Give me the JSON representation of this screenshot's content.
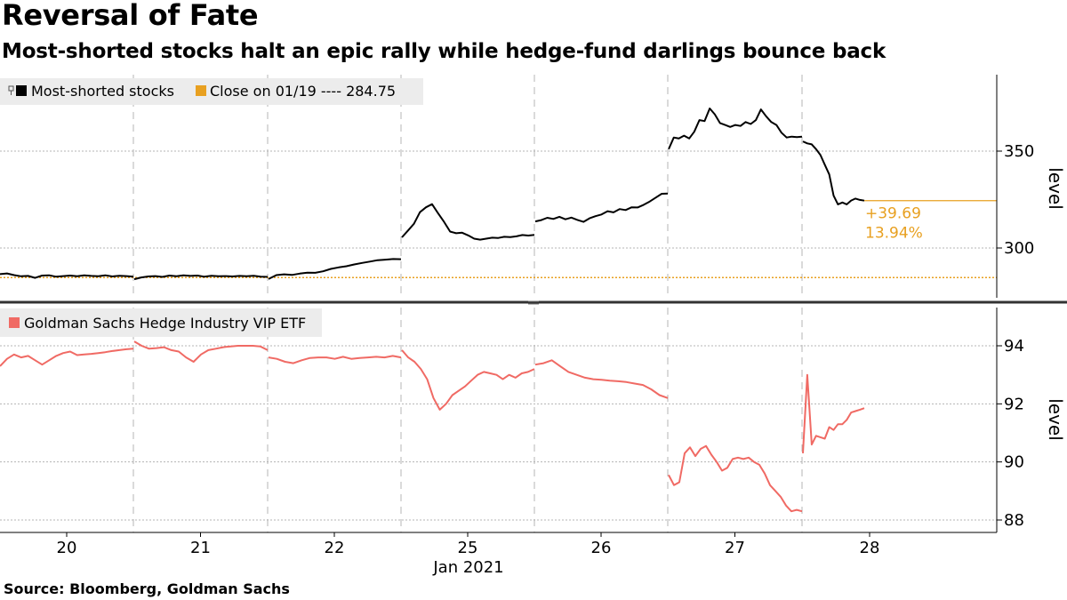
{
  "title": "Reversal of Fate",
  "subtitle": "Most-shorted stocks halt an epic rally while hedge-fund darlings bounce back",
  "source": "Source: Bloomberg, Goldman Sachs",
  "colors": {
    "black_series": "#000000",
    "reference": "#e8a020",
    "etf_series": "#f06a64",
    "legend_bg": "#ececec",
    "grid": "#b4b4b4",
    "separator": "#333333"
  },
  "chart_data": [
    {
      "type": "line",
      "ylabel": "level",
      "y_ticks": [
        300,
        350
      ],
      "ylim": [
        279,
        391
      ],
      "legend": {
        "placement": "top-left",
        "entries": [
          {
            "label": "Most-shorted stocks"
          },
          {
            "label": "Close on 01/19 ---- 284.75"
          }
        ]
      },
      "reference_line": {
        "label": "Close on 01/19",
        "value": 284.75
      },
      "annotation": {
        "change": "+39.69",
        "percent": "13.94%"
      },
      "last_value": 324.44,
      "series": [
        {
          "name": "Most-shorted stocks",
          "sessions": [
            {
              "day": "20",
              "values": [
                286.5,
                286.9,
                286.0,
                285.4,
                285.6,
                284.6,
                285.8,
                285.9,
                285.2,
                285.5,
                285.8,
                285.4,
                285.9,
                285.6,
                285.4,
                285.9,
                285.3,
                285.7,
                285.5,
                285.2
              ]
            },
            {
              "day": "21",
              "values": [
                283.9,
                284.8,
                285.3,
                285.5,
                285.1,
                285.8,
                285.4,
                285.9,
                285.6,
                285.8,
                285.2,
                285.7,
                285.4,
                285.5,
                285.3,
                285.6,
                285.4,
                285.7,
                285.2,
                285.1
              ]
            },
            {
              "day": "22",
              "values": [
                284.0,
                286.0,
                286.4,
                286.1,
                286.8,
                287.3,
                287.2,
                288.0,
                289.2,
                290.0,
                290.6,
                291.5,
                292.3,
                293.0,
                293.7,
                294.0,
                294.3,
                294.2
              ]
            },
            {
              "day": "25",
              "values": [
                305.5,
                309.0,
                312.5,
                318.5,
                321.0,
                322.6,
                318.0,
                313.5,
                308.5,
                307.6,
                307.9,
                306.5,
                304.8,
                304.3,
                304.8,
                305.3,
                305.2,
                305.8,
                305.6,
                306.0,
                306.7,
                306.4,
                306.8
              ]
            },
            {
              "day": "26",
              "values": [
                313.7,
                314.4,
                315.6,
                315.0,
                316.1,
                314.8,
                315.7,
                314.5,
                313.5,
                315.3,
                316.4,
                317.3,
                319.0,
                318.4,
                320.1,
                319.6,
                321.0,
                320.9,
                322.3,
                324.0,
                326.0,
                328.0,
                328.1
              ]
            },
            {
              "day": "27",
              "values": [
                351.0,
                357.0,
                356.5,
                358.0,
                356.5,
                360.0,
                366.0,
                365.5,
                372.0,
                369.0,
                364.5,
                363.5,
                362.5,
                363.5,
                363.0,
                365.0,
                364.0,
                366.0,
                371.5,
                368.0,
                365.0,
                363.5,
                359.5,
                357.0,
                357.5,
                357.2,
                357.5
              ]
            },
            {
              "day": "28",
              "values": [
                355.0,
                354.0,
                353.5,
                351.0,
                348.0,
                343.0,
                338.0,
                327.0,
                322.5,
                323.5,
                322.5,
                324.5,
                325.5,
                324.8,
                324.44
              ]
            }
          ]
        }
      ]
    },
    {
      "type": "line",
      "ylabel": "level",
      "y_ticks": [
        88,
        90,
        92,
        94
      ],
      "ylim": [
        87.8,
        95.2
      ],
      "legend": {
        "placement": "top-left",
        "entries": [
          {
            "label": "Goldman Sachs Hedge Industry VIP ETF"
          }
        ]
      },
      "x_ticks": [
        "20",
        "21",
        "22",
        "25",
        "26",
        "27",
        "28"
      ],
      "x_month_label": "Jan 2021",
      "series": [
        {
          "name": "Goldman Sachs Hedge Industry VIP ETF",
          "sessions": [
            {
              "day": "20",
              "values": [
                93.3,
                93.55,
                93.7,
                93.6,
                93.65,
                93.5,
                93.35,
                93.5,
                93.65,
                93.75,
                93.8,
                93.68,
                93.7,
                93.72,
                93.75,
                93.78,
                93.82,
                93.85,
                93.88,
                93.9
              ]
            },
            {
              "day": "21",
              "values": [
                94.15,
                94.0,
                93.9,
                93.92,
                93.95,
                93.85,
                93.8,
                93.6,
                93.45,
                93.7,
                93.85,
                93.9,
                93.95,
                93.98,
                94.0,
                94.0,
                94.0,
                93.98,
                93.85
              ]
            },
            {
              "day": "22",
              "values": [
                93.6,
                93.55,
                93.45,
                93.4,
                93.5,
                93.58,
                93.6,
                93.6,
                93.55,
                93.62,
                93.55,
                93.58,
                93.6,
                93.62,
                93.6,
                93.65,
                93.6
              ]
            },
            {
              "day": "25",
              "values": [
                93.85,
                93.6,
                93.45,
                93.2,
                92.85,
                92.2,
                91.8,
                92.0,
                92.3,
                92.45,
                92.6,
                92.8,
                93.0,
                93.1,
                93.05,
                93.0,
                92.85,
                93.0,
                92.9,
                93.05,
                93.1,
                93.2
              ]
            },
            {
              "day": "26",
              "values": [
                93.35,
                93.4,
                93.5,
                93.3,
                93.1,
                93.0,
                92.9,
                92.85,
                92.83,
                92.8,
                92.78,
                92.75,
                92.7,
                92.65,
                92.5,
                92.3,
                92.2
              ]
            },
            {
              "day": "27",
              "values": [
                89.55,
                89.2,
                89.3,
                90.3,
                90.5,
                90.2,
                90.45,
                90.55,
                90.25,
                90.0,
                89.7,
                89.8,
                90.1,
                90.15,
                90.1,
                90.15,
                90.0,
                89.9,
                89.6,
                89.2,
                89.0,
                88.8,
                88.5,
                88.3,
                88.35,
                88.3
              ]
            },
            {
              "day": "28",
              "values": [
                90.3,
                93.0,
                90.6,
                90.9,
                90.85,
                90.8,
                91.2,
                91.1,
                91.3,
                91.3,
                91.45,
                91.7,
                91.75,
                91.8,
                91.85
              ]
            }
          ]
        }
      ]
    }
  ]
}
